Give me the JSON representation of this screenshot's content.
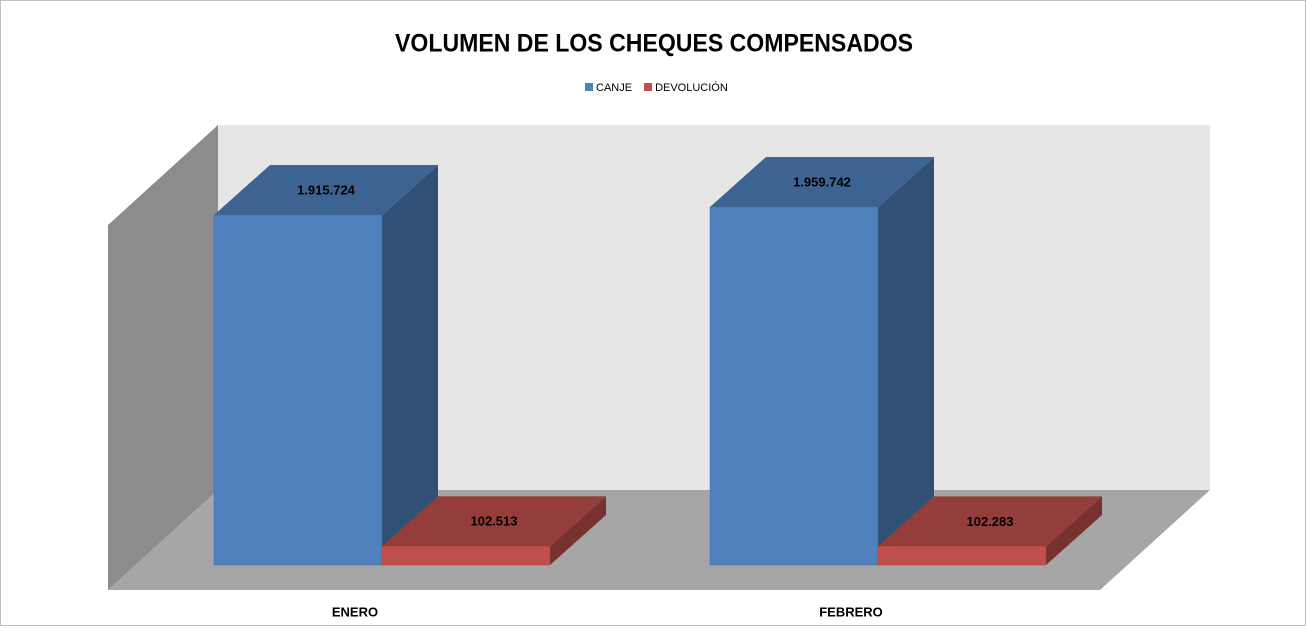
{
  "chart_data": {
    "type": "bar3d",
    "title": "VOLUMEN DE LOS CHEQUES COMPENSADOS",
    "categories": [
      "ENERO",
      "FEBRERO"
    ],
    "series": [
      {
        "name": "CANJE",
        "color": "#4f81bd",
        "values": [
          1915724,
          1959742
        ],
        "value_labels": [
          "1.915.724",
          "1.959.742"
        ]
      },
      {
        "name": "DEVOLUCIÓN",
        "color": "#c0504d",
        "values": [
          102513,
          102283
        ],
        "value_labels": [
          "102.513",
          "102.283"
        ]
      }
    ],
    "legend": "top"
  }
}
